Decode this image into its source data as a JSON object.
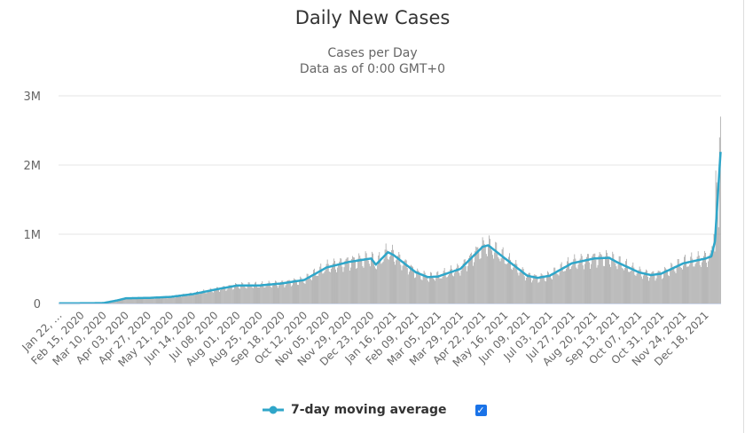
{
  "chart_data": {
    "type": "bar",
    "title": "Daily New Cases",
    "subtitle": "Cases per Day",
    "subtitle2": "Data as of 0:00 GMT+0",
    "xlabel": "",
    "ylabel": "",
    "ylim": [
      0,
      3000000
    ],
    "y_ticks": [
      {
        "value": 0,
        "label": "0"
      },
      {
        "value": 1000000,
        "label": "1M"
      },
      {
        "value": 2000000,
        "label": "2M"
      },
      {
        "value": 3000000,
        "label": "3M"
      }
    ],
    "grid": true,
    "x_start": "2020-01-22",
    "x_end": "2022-01-03",
    "x_ticks": [
      "Jan 22, …",
      "Feb 15, 2020",
      "Mar 10, 2020",
      "Apr 03, 2020",
      "Apr 27, 2020",
      "May 21, 2020",
      "Jun 14, 2020",
      "Jul 08, 2020",
      "Aug 01, 2020",
      "Aug 25, 2020",
      "Sep 18, 2020",
      "Oct 12, 2020",
      "Nov 05, 2020",
      "Nov 29, 2020",
      "Dec 23, 2020",
      "Jan 16, 2021",
      "Feb 09, 2021",
      "Mar 05, 2021",
      "Mar 29, 2021",
      "Apr 22, 2021",
      "May 16, 2021",
      "Jun 09, 2021",
      "Jul 03, 2021",
      "Jul 27, 2021",
      "Aug 20, 2021",
      "Sep 13, 2021",
      "Oct 07, 2021",
      "Oct 31, 2021",
      "Nov 24, 2021",
      "Dec 18, 2021"
    ],
    "moving_average": {
      "name": "7-day moving average",
      "color": "#2fa6c9",
      "points": [
        [
          "2020-01-22",
          1000
        ],
        [
          "2020-02-15",
          2000
        ],
        [
          "2020-03-10",
          6000
        ],
        [
          "2020-03-25",
          45000
        ],
        [
          "2020-04-03",
          75000
        ],
        [
          "2020-04-27",
          80000
        ],
        [
          "2020-05-21",
          95000
        ],
        [
          "2020-06-14",
          135000
        ],
        [
          "2020-07-08",
          200000
        ],
        [
          "2020-08-01",
          260000
        ],
        [
          "2020-08-25",
          260000
        ],
        [
          "2020-09-18",
          290000
        ],
        [
          "2020-10-12",
          340000
        ],
        [
          "2020-11-05",
          520000
        ],
        [
          "2020-11-29",
          600000
        ],
        [
          "2020-12-23",
          650000
        ],
        [
          "2020-12-28",
          560000
        ],
        [
          "2021-01-10",
          740000
        ],
        [
          "2021-01-16",
          700000
        ],
        [
          "2021-02-09",
          450000
        ],
        [
          "2021-02-22",
          380000
        ],
        [
          "2021-03-05",
          390000
        ],
        [
          "2021-03-29",
          500000
        ],
        [
          "2021-04-22",
          820000
        ],
        [
          "2021-04-28",
          840000
        ],
        [
          "2021-05-16",
          650000
        ],
        [
          "2021-06-09",
          400000
        ],
        [
          "2021-06-20",
          370000
        ],
        [
          "2021-07-03",
          400000
        ],
        [
          "2021-07-27",
          580000
        ],
        [
          "2021-08-20",
          650000
        ],
        [
          "2021-09-05",
          660000
        ],
        [
          "2021-09-13",
          600000
        ],
        [
          "2021-10-07",
          450000
        ],
        [
          "2021-10-20",
          410000
        ],
        [
          "2021-10-31",
          430000
        ],
        [
          "2021-11-24",
          580000
        ],
        [
          "2021-12-18",
          650000
        ],
        [
          "2021-12-24",
          680000
        ],
        [
          "2021-12-28",
          900000
        ],
        [
          "2021-12-31",
          1550000
        ],
        [
          "2022-01-03",
          2190000
        ]
      ]
    },
    "daily_series": {
      "name": "Daily Cases",
      "color": "#999999"
    },
    "daily_tail": [
      [
        "2021-12-27",
        1000000
      ],
      [
        "2021-12-28",
        750000
      ],
      [
        "2021-12-29",
        1920000
      ],
      [
        "2021-12-30",
        1750000
      ],
      [
        "2021-12-31",
        1400000
      ],
      [
        "2022-01-01",
        1100000
      ],
      [
        "2022-01-02",
        2400000
      ],
      [
        "2022-01-03",
        2700000
      ]
    ],
    "legend": {
      "label": "7-day moving average",
      "checked": true,
      "position": "bottom-center"
    }
  }
}
